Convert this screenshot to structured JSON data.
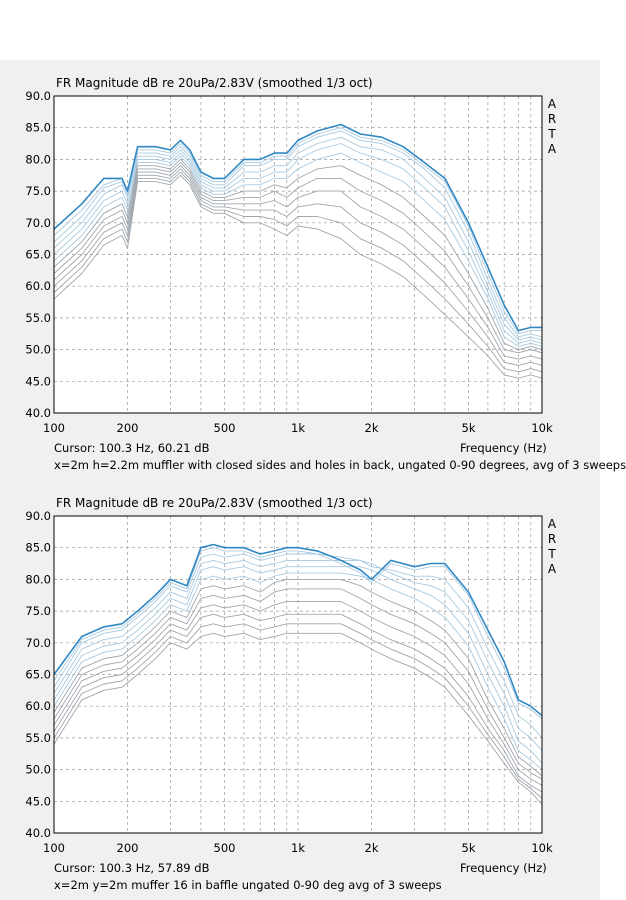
{
  "brand_letters": [
    "A",
    "R",
    "T",
    "A"
  ],
  "colors": {
    "background": "#f0f0f0",
    "plot_background": "#ffffff",
    "grid": "#9a9a9a",
    "on_axis": "#2f88c4",
    "off_axis_light": "#a8c9e0",
    "off_axis_gray": "#9fa6ad"
  },
  "charts": [
    {
      "title": "FR Magnitude dB re 20uPa/2.83V (smoothed 1/3 oct)",
      "cursor": "Cursor: 100.3 Hz, 60.21 dB",
      "xlabel": "Frequency (Hz)",
      "caption": "x=2m h=2.2m muffler with closed sides and holes in back, ungated 0-90 degrees, avg of 3 sweeps"
    },
    {
      "title": "FR Magnitude dB re 20uPa/2.83V (smoothed 1/3 oct)",
      "cursor": "Cursor: 100.3 Hz, 57.89 dB",
      "xlabel": "Frequency (Hz)",
      "caption": "x=2m y=2m muffer 16 in baffle ungated 0-90 deg avg of 3 sweeps"
    }
  ],
  "chart_data": [
    {
      "type": "line",
      "xscale": "log",
      "xlim": [
        100,
        10000
      ],
      "ylim": [
        40,
        90
      ],
      "grid": true,
      "x_tick_labels": [
        "100",
        "200",
        "500",
        "1k",
        "2k",
        "5k",
        "10k"
      ],
      "x_tick_values": [
        100,
        200,
        500,
        1000,
        2000,
        5000,
        10000
      ],
      "y_ticks": [
        "90.0",
        "85.0",
        "80.0",
        "75.0",
        "70.0",
        "65.0",
        "60.0",
        "55.0",
        "50.0",
        "45.0",
        "40.0"
      ],
      "x": [
        100,
        130,
        160,
        190,
        200,
        220,
        260,
        300,
        330,
        360,
        400,
        450,
        500,
        600,
        700,
        800,
        900,
        1000,
        1200,
        1500,
        1800,
        2200,
        2700,
        3300,
        4000,
        5000,
        6000,
        7000,
        8000,
        9000,
        10000
      ],
      "series": [
        {
          "role": "on-axis",
          "values": [
            69,
            73,
            77,
            77,
            75,
            82,
            82,
            81.5,
            83,
            81.5,
            78,
            77,
            77,
            80,
            80,
            81,
            81,
            83,
            84.5,
            85.5,
            84,
            83.5,
            82,
            79.5,
            77,
            70,
            63,
            57,
            53,
            53.5,
            53.5
          ]
        },
        {
          "role": "off-axis",
          "values": [
            68,
            72,
            76,
            77,
            75,
            81.5,
            81.5,
            81,
            82.5,
            81,
            77.5,
            76.5,
            76.5,
            79.5,
            79.5,
            80.5,
            80.5,
            82.5,
            84,
            85,
            83.5,
            83,
            81.5,
            79,
            76.5,
            69.5,
            62,
            56,
            52.5,
            53,
            53
          ]
        },
        {
          "role": "off-axis",
          "values": [
            67,
            71,
            75.5,
            76.5,
            74.5,
            81,
            81,
            80.5,
            82,
            80.5,
            77,
            76,
            76,
            79,
            79,
            80,
            80,
            82,
            83.5,
            84.5,
            83,
            82.5,
            81,
            78.5,
            75.5,
            68.5,
            61,
            55,
            52,
            52.5,
            52
          ]
        },
        {
          "role": "off-axis",
          "values": [
            66,
            70,
            74.5,
            76,
            74,
            80.5,
            80.5,
            80,
            81.5,
            80,
            76.5,
            75.5,
            75.5,
            78,
            78,
            79,
            79,
            81,
            82.5,
            83.5,
            82,
            81.5,
            80,
            77,
            74,
            67,
            60,
            54,
            51.5,
            52,
            51.5
          ]
        },
        {
          "role": "off-axis",
          "values": [
            65,
            69,
            73.5,
            75,
            73,
            80,
            80,
            79.5,
            81,
            79.5,
            76,
            75,
            75,
            77,
            77,
            78,
            78,
            80,
            81.5,
            82.5,
            81,
            80,
            78.5,
            75.5,
            72.5,
            65.5,
            59,
            53,
            51,
            51.5,
            51
          ]
        },
        {
          "role": "off-axis",
          "values": [
            64,
            68,
            72.5,
            74,
            72,
            79.5,
            79.5,
            79,
            80.5,
            79,
            75.5,
            74.5,
            74.5,
            76,
            76,
            77,
            77,
            78.5,
            80,
            81,
            79.5,
            78,
            76.5,
            73.5,
            70.5,
            64,
            58,
            52,
            50.5,
            51,
            50.5
          ]
        },
        {
          "role": "off-axis",
          "values": [
            63,
            67,
            71.5,
            73,
            71,
            79,
            79,
            78.5,
            80,
            78.5,
            75,
            74,
            74,
            75,
            75,
            76,
            75.5,
            77,
            78.5,
            79,
            77.5,
            76,
            74,
            71,
            68,
            62,
            56.5,
            51,
            50,
            50.5,
            50
          ]
        },
        {
          "role": "off-axis",
          "values": [
            62,
            66,
            70.5,
            72,
            70,
            78.5,
            78.5,
            78,
            79.5,
            78,
            74.5,
            73.5,
            73.5,
            74,
            74,
            75,
            74,
            75.5,
            77,
            77,
            75,
            73.5,
            71.5,
            68.5,
            65.5,
            60,
            55,
            50,
            49.5,
            50,
            49.5
          ]
        },
        {
          "role": "off-axis",
          "values": [
            61,
            65,
            69.5,
            71,
            69,
            78,
            78,
            77.5,
            79,
            77.5,
            74,
            73,
            73,
            73,
            73,
            73.5,
            72.5,
            74,
            75,
            75,
            72.5,
            71,
            69,
            66,
            63,
            58,
            53.5,
            49,
            48.5,
            49,
            48.5
          ]
        },
        {
          "role": "off-axis",
          "values": [
            60,
            64,
            68.5,
            70,
            68,
            77.5,
            77.5,
            77,
            78.5,
            77,
            73.5,
            72.5,
            72.5,
            72,
            72,
            72,
            71,
            72.5,
            73,
            72.5,
            70,
            68.5,
            66.5,
            63.5,
            60.5,
            56,
            52,
            48,
            47.5,
            48,
            47.5
          ]
        },
        {
          "role": "off-axis",
          "values": [
            59,
            63,
            67.5,
            69,
            67,
            77,
            77,
            76.5,
            78,
            76.5,
            73,
            72,
            72,
            71,
            71,
            70.5,
            69.5,
            71,
            71,
            70,
            67.5,
            66,
            64,
            61,
            58,
            54,
            50.5,
            47,
            46.5,
            47,
            46.5
          ]
        },
        {
          "role": "off-axis",
          "values": [
            58,
            62,
            66.5,
            68,
            66,
            76.5,
            76.5,
            76,
            77.5,
            76,
            72.5,
            71.5,
            71.5,
            70,
            70,
            69,
            68,
            69.5,
            69,
            67.5,
            65,
            63.5,
            61.5,
            58.5,
            55.5,
            52,
            49,
            46,
            45.5,
            46,
            45.5
          ]
        }
      ]
    },
    {
      "type": "line",
      "xscale": "log",
      "xlim": [
        100,
        10000
      ],
      "ylim": [
        40,
        90
      ],
      "grid": true,
      "x_tick_labels": [
        "100",
        "200",
        "500",
        "1k",
        "2k",
        "5k",
        "10k"
      ],
      "x_tick_values": [
        100,
        200,
        500,
        1000,
        2000,
        5000,
        10000
      ],
      "y_ticks": [
        "90.0",
        "85.0",
        "80.0",
        "75.0",
        "70.0",
        "65.0",
        "60.0",
        "55.0",
        "50.0",
        "45.0",
        "40.0"
      ],
      "x": [
        100,
        130,
        160,
        190,
        220,
        260,
        300,
        350,
        400,
        450,
        500,
        600,
        700,
        800,
        900,
        1000,
        1200,
        1500,
        1800,
        2000,
        2400,
        3000,
        3500,
        4000,
        5000,
        6000,
        7000,
        8000,
        9000,
        10000
      ],
      "series": [
        {
          "role": "on-axis",
          "values": [
            65,
            71,
            72.5,
            73,
            75,
            77.5,
            80,
            79,
            85,
            85.5,
            85,
            85,
            84,
            84.5,
            85,
            85,
            84.5,
            83,
            81.5,
            80,
            83,
            82,
            82.5,
            82.5,
            78,
            72,
            67,
            61,
            60,
            58.5
          ]
        },
        {
          "role": "off-axis",
          "values": [
            64,
            70.5,
            72,
            72.5,
            74.5,
            77,
            79.5,
            78.5,
            84.5,
            85,
            84.5,
            84.5,
            83.5,
            84,
            84.5,
            84.5,
            84,
            82.5,
            81,
            79.5,
            82.5,
            81.5,
            82,
            82,
            77.5,
            71,
            66,
            60.5,
            59.5,
            58
          ]
        },
        {
          "role": "off-axis",
          "values": [
            63,
            70,
            71.5,
            72,
            74,
            76.5,
            79,
            78,
            83.5,
            84,
            83.5,
            84,
            83,
            83.5,
            84,
            84,
            84,
            83.5,
            83,
            82,
            81.5,
            80.5,
            80.5,
            80,
            75.5,
            69,
            64,
            58.5,
            57,
            55
          ]
        },
        {
          "role": "off-axis",
          "values": [
            62,
            69,
            70.5,
            71,
            73,
            75.5,
            78,
            77,
            82.5,
            83,
            82.5,
            83,
            82,
            82.5,
            83,
            83,
            83,
            83,
            83,
            82.5,
            81,
            79.5,
            79,
            78,
            73.5,
            67,
            62,
            56.5,
            55,
            53
          ]
        },
        {
          "role": "off-axis",
          "values": [
            61,
            68,
            69.5,
            70,
            72,
            74.5,
            77,
            76,
            81.5,
            82,
            81.5,
            82,
            81,
            81.5,
            82,
            82,
            82,
            82,
            82,
            81.5,
            80,
            78.5,
            77.5,
            76,
            71.5,
            65,
            60,
            54.5,
            53,
            51
          ]
        },
        {
          "role": "off-axis",
          "values": [
            60,
            67,
            68.5,
            69,
            71,
            73.5,
            76,
            75,
            80,
            80.5,
            80,
            80.5,
            79.5,
            80.5,
            81,
            81,
            81,
            81,
            80.5,
            80,
            78.5,
            77,
            75.5,
            74,
            69.5,
            63,
            58,
            53,
            51.5,
            50
          ]
        },
        {
          "role": "off-axis",
          "values": [
            59,
            66,
            67.5,
            68,
            70,
            72.5,
            75,
            74,
            78.5,
            79,
            78.5,
            79,
            78,
            79.5,
            80,
            80,
            80,
            80,
            79,
            78,
            76.5,
            75,
            73.5,
            72,
            67.5,
            61,
            56.5,
            52,
            50.5,
            49
          ]
        },
        {
          "role": "off-axis",
          "values": [
            58,
            65,
            66.5,
            67,
            69,
            71.5,
            74,
            73,
            77,
            77.5,
            77,
            77.5,
            76.5,
            78,
            78.5,
            78.5,
            78.5,
            78.5,
            77,
            76,
            74.5,
            73,
            71.5,
            70,
            65.5,
            59.5,
            55,
            51,
            49.5,
            48.5
          ]
        },
        {
          "role": "off-axis",
          "values": [
            57,
            64,
            65.5,
            66,
            68,
            70.5,
            73,
            72,
            75.5,
            76,
            75.5,
            76,
            75,
            76,
            76.5,
            76.5,
            76.5,
            76.5,
            75,
            74,
            72.5,
            71,
            69.5,
            68,
            63.5,
            58,
            54,
            50,
            48.5,
            47.5
          ]
        },
        {
          "role": "off-axis",
          "values": [
            56,
            63,
            64.5,
            65,
            67,
            69.5,
            72,
            71,
            74,
            74.5,
            74,
            74.5,
            73.5,
            74,
            74.5,
            74.5,
            74.5,
            74.5,
            73,
            72,
            70.5,
            69,
            67.5,
            66,
            61.5,
            56.5,
            53,
            49,
            47.5,
            46.5
          ]
        },
        {
          "role": "off-axis",
          "values": [
            55,
            62,
            63.5,
            64,
            66,
            68.5,
            71,
            70,
            72.5,
            73,
            72.5,
            73,
            72,
            72.5,
            73,
            73,
            73,
            73,
            71.5,
            70.5,
            69,
            67.5,
            66,
            64.5,
            60,
            55.5,
            52,
            48.5,
            47,
            45.5
          ]
        },
        {
          "role": "off-axis",
          "values": [
            54,
            61,
            62.5,
            63,
            65,
            67.5,
            70,
            69,
            71,
            71.5,
            71,
            71.5,
            70.5,
            71,
            71.5,
            71.5,
            71.5,
            71.5,
            70,
            69,
            67.5,
            66,
            64.5,
            63,
            58.5,
            54.5,
            51,
            48,
            46.5,
            44.5
          ]
        }
      ]
    }
  ]
}
